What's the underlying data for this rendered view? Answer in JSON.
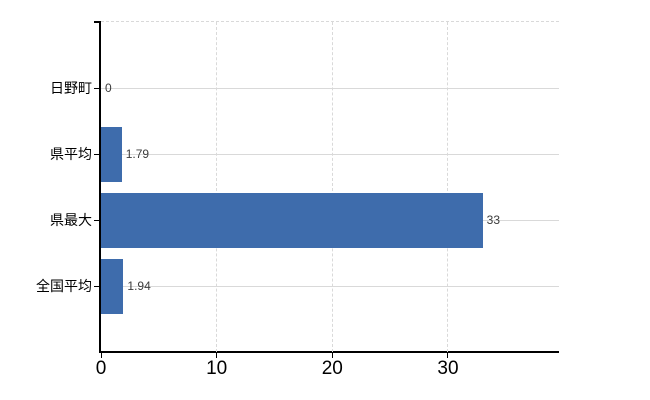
{
  "chart_data": {
    "type": "bar",
    "orientation": "horizontal",
    "title": "",
    "categories": [
      "日野町",
      "県平均",
      "県最大",
      "全国平均"
    ],
    "values": [
      0,
      1.79,
      33,
      1.94
    ],
    "data_labels": [
      "0",
      "1.79",
      "33",
      "1.94"
    ],
    "x_ticks": [
      "0",
      "10",
      "20",
      "30"
    ],
    "x_tick_values": [
      0,
      10,
      20,
      30
    ],
    "xlim": [
      0,
      39.6
    ],
    "ylabel": "",
    "xlabel": "",
    "grid": "on",
    "gridline_style": {
      "horizontal": "solid",
      "vertical": "dashed"
    },
    "legend": "none",
    "colors": {
      "bar": "#3e6cac",
      "grid": "#d9d9d9",
      "axis": "#000000",
      "label": "#000000",
      "data_label": "#3c3c3c",
      "background": "#ffffff"
    }
  }
}
